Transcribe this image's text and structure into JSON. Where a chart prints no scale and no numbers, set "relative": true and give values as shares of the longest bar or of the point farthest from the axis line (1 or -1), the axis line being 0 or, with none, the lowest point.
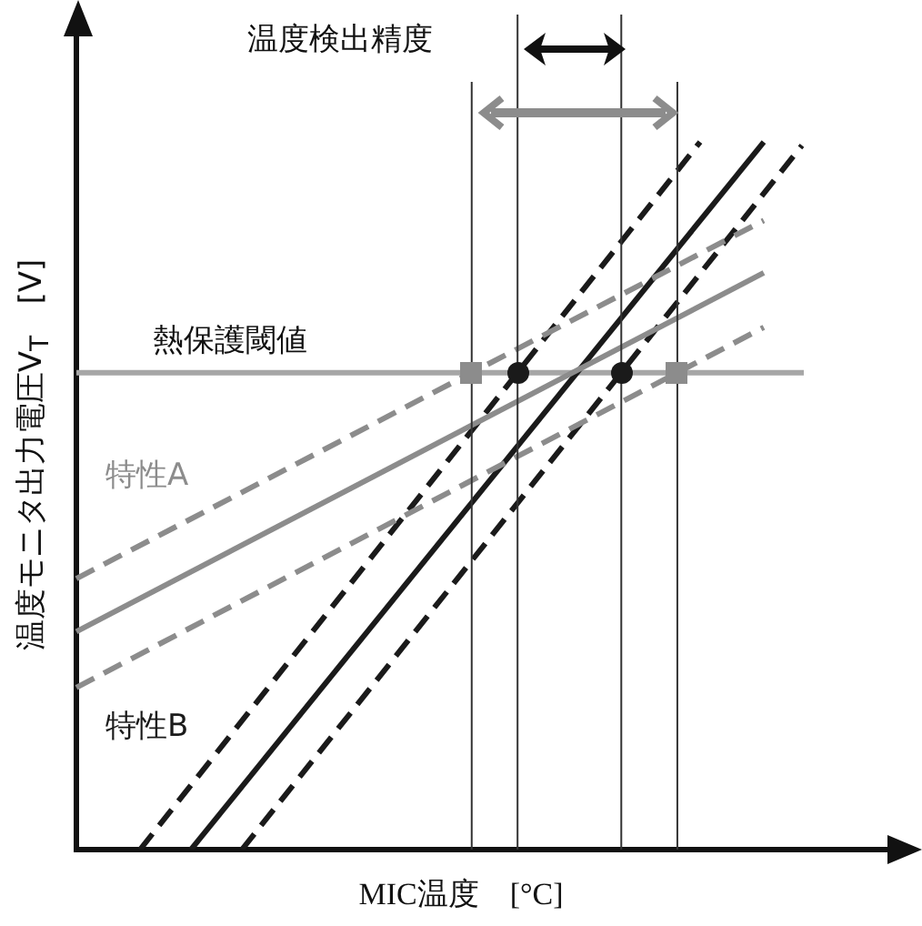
{
  "chart_data": {
    "type": "line",
    "relative": true,
    "legend": false,
    "xlabel": "MIC温度　[°C]",
    "ylabel": "温度モニタ出力電圧V$_{T}$　[V]",
    "annotations": [
      "温度検出精度"
    ],
    "categories": [
      null,
      null,
      null,
      null,
      null,
      null,
      null,
      null,
      null,
      null,
      null,
      null,
      null,
      null,
      null,
      null,
      null,
      null,
      null,
      null,
      null,
      null,
      null,
      null,
      null,
      null,
      null,
      null,
      null,
      null,
      null,
      null,
      null,
      null,
      null,
      null,
      null,
      null,
      null,
      null,
      null,
      null,
      null,
      null,
      null,
      null,
      null,
      null,
      null,
      null,
      null,
      null,
      null,
      null,
      null,
      null,
      null,
      null,
      null,
      null,
      null,
      null,
      null,
      null,
      null
    ],
    "marker": "none",
    "grid": "x",
    "series": [
      {
        "color": "#8c8c8c",
        "line_style": "dashed",
        "values": [
          0.383,
          null,
          null,
          null,
          null,
          null,
          null,
          null,
          null,
          null,
          null,
          null,
          null,
          null,
          null,
          null,
          null,
          null,
          null,
          null,
          null,
          null,
          null,
          null,
          null,
          null,
          null,
          null,
          null,
          null,
          null,
          null,
          null,
          null,
          null,
          null,
          null,
          null,
          null,
          null,
          null,
          null,
          null,
          null,
          null,
          null,
          null,
          null,
          null,
          null,
          null,
          null,
          null,
          null,
          0.889,
          null,
          null,
          null,
          null,
          null,
          null,
          null,
          null,
          null,
          null
        ]
      },
      {
        "name": "特性A",
        "color": "#8c8c8c",
        "line_style": "solid",
        "values": [
          0.308,
          null,
          null,
          null,
          null,
          null,
          null,
          null,
          null,
          null,
          null,
          null,
          null,
          null,
          null,
          null,
          null,
          null,
          null,
          null,
          null,
          null,
          null,
          null,
          null,
          null,
          null,
          null,
          null,
          null,
          null,
          null,
          null,
          null,
          null,
          null,
          null,
          null,
          null,
          null,
          null,
          null,
          null,
          null,
          null,
          null,
          null,
          null,
          null,
          null,
          null,
          null,
          null,
          null,
          0.815,
          null,
          null,
          null,
          null,
          null,
          null,
          null,
          null,
          null,
          null
        ]
      },
      {
        "color": "#8c8c8c",
        "line_style": "dashed",
        "values": [
          0.229,
          null,
          null,
          null,
          null,
          null,
          null,
          null,
          null,
          null,
          null,
          null,
          null,
          null,
          null,
          null,
          null,
          null,
          null,
          null,
          null,
          null,
          null,
          null,
          null,
          null,
          null,
          null,
          null,
          null,
          null,
          null,
          null,
          null,
          null,
          null,
          null,
          null,
          null,
          null,
          null,
          null,
          null,
          null,
          null,
          null,
          null,
          null,
          null,
          null,
          null,
          null,
          null,
          null,
          0.738,
          null,
          null,
          null,
          null,
          null,
          null,
          null,
          null,
          null,
          null
        ]
      },
      {
        "color": "#1a1a1a",
        "line_style": "dashed",
        "values": [
          null,
          null,
          null,
          null,
          null,
          0,
          null,
          null,
          null,
          null,
          null,
          null,
          null,
          null,
          null,
          null,
          null,
          null,
          null,
          null,
          null,
          null,
          null,
          null,
          null,
          null,
          null,
          null,
          null,
          null,
          null,
          null,
          null,
          null,
          null,
          null,
          null,
          null,
          null,
          null,
          null,
          null,
          null,
          null,
          null,
          null,
          null,
          null,
          null,
          1,
          null,
          null,
          null,
          null,
          null,
          null,
          null,
          null,
          null,
          null,
          null,
          null,
          null,
          null,
          null
        ]
      },
      {
        "name": "特性B",
        "color": "#1a1a1a",
        "line_style": "solid",
        "values": [
          null,
          null,
          null,
          null,
          null,
          null,
          null,
          null,
          null,
          0,
          null,
          null,
          null,
          null,
          null,
          null,
          null,
          null,
          null,
          null,
          null,
          null,
          null,
          null,
          null,
          null,
          null,
          null,
          null,
          null,
          null,
          null,
          null,
          null,
          null,
          null,
          null,
          null,
          null,
          null,
          null,
          null,
          null,
          null,
          null,
          null,
          null,
          null,
          null,
          null,
          null,
          null,
          null,
          null,
          1,
          null,
          null,
          null,
          null,
          null,
          null,
          null,
          null,
          null,
          null
        ]
      },
      {
        "color": "#1a1a1a",
        "line_style": "dashed",
        "values": [
          null,
          null,
          null,
          null,
          null,
          null,
          null,
          null,
          null,
          null,
          null,
          null,
          null,
          0,
          null,
          null,
          null,
          null,
          null,
          null,
          null,
          null,
          null,
          null,
          null,
          null,
          null,
          null,
          null,
          null,
          null,
          null,
          null,
          null,
          null,
          null,
          null,
          null,
          null,
          null,
          null,
          null,
          null,
          null,
          null,
          null,
          null,
          null,
          null,
          null,
          null,
          null,
          null,
          null,
          null,
          null,
          null,
          0.995,
          null,
          null,
          null,
          null,
          null,
          null,
          null
        ]
      }
    ],
    "ref_lines": [
      {
        "axis": "y",
        "value": 0.674,
        "label": "熱保護閾値",
        "color": "#a6a6a6"
      }
    ]
  }
}
